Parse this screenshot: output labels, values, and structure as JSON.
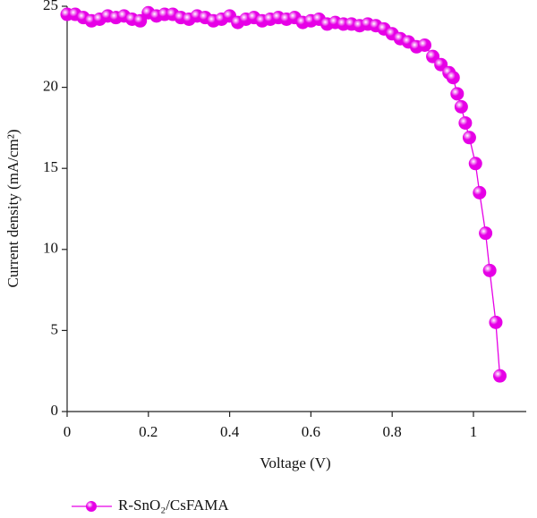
{
  "chart_data": {
    "type": "line",
    "x_label": "Voltage (V)",
    "y_label": "Current density (mA/cm²)",
    "x": [
      0,
      0.02,
      0.04,
      0.06,
      0.08,
      0.1,
      0.12,
      0.14,
      0.16,
      0.18,
      0.2,
      0.22,
      0.24,
      0.26,
      0.28,
      0.3,
      0.32,
      0.34,
      0.36,
      0.38,
      0.4,
      0.42,
      0.44,
      0.46,
      0.48,
      0.5,
      0.52,
      0.54,
      0.56,
      0.58,
      0.6,
      0.62,
      0.64,
      0.66,
      0.68,
      0.7,
      0.72,
      0.74,
      0.76,
      0.78,
      0.8,
      0.82,
      0.84,
      0.86,
      0.88,
      0.9,
      0.92,
      0.94,
      0.95,
      0.96,
      0.97,
      0.98,
      0.99,
      1.005,
      1.015,
      1.03,
      1.04,
      1.055,
      1.065
    ],
    "series": [
      {
        "name": "R-SnO₂/CsFAMA",
        "color": "#e600e6",
        "values": [
          24.5,
          24.5,
          24.3,
          24.1,
          24.2,
          24.4,
          24.3,
          24.4,
          24.2,
          24.1,
          24.6,
          24.4,
          24.5,
          24.5,
          24.3,
          24.2,
          24.4,
          24.3,
          24.1,
          24.2,
          24.4,
          24.0,
          24.2,
          24.3,
          24.1,
          24.2,
          24.3,
          24.2,
          24.3,
          24.0,
          24.1,
          24.2,
          23.9,
          24.0,
          23.9,
          23.9,
          23.8,
          23.9,
          23.8,
          23.6,
          23.3,
          23.0,
          22.8,
          22.5,
          22.6,
          21.9,
          21.4,
          20.9,
          20.6,
          19.6,
          18.8,
          17.8,
          16.9,
          15.3,
          13.5,
          11.0,
          8.7,
          5.5,
          2.2
        ]
      }
    ],
    "xlim": [
      0,
      1.13
    ],
    "ylim": [
      0,
      25
    ],
    "xticks": [
      0,
      0.2,
      0.4,
      0.6,
      0.8,
      1
    ],
    "yticks": [
      0,
      5,
      10,
      15,
      20,
      25
    ],
    "legend": "bottom"
  }
}
